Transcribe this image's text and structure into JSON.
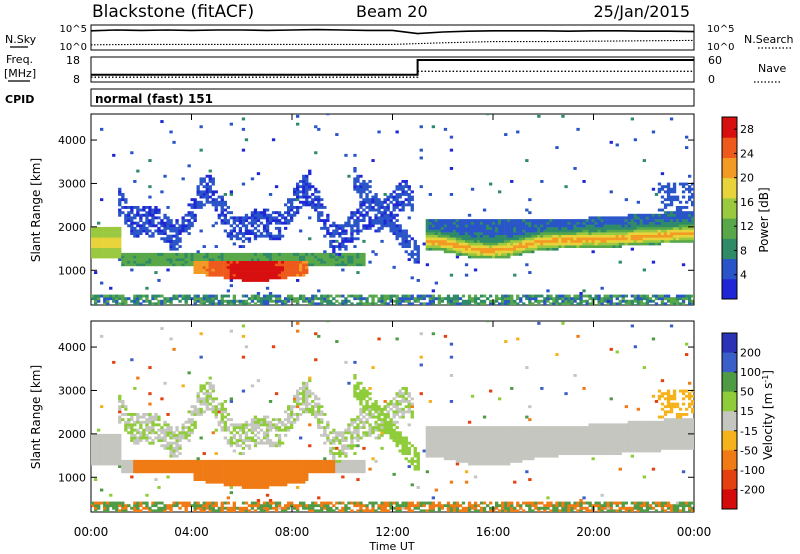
{
  "header": {
    "station": "Blackstone (fitACF)",
    "beam": "Beam 20",
    "date": "25/Jan/2015"
  },
  "noise_panel": {
    "left_label": "N.Sky",
    "right_label": "N.Search",
    "tick_top": "10^5",
    "tick_bottom": "10^0",
    "series": [
      {
        "name": "N.Sky",
        "x": [
          0,
          1,
          2,
          3,
          4,
          5,
          6,
          7,
          8,
          9,
          10,
          11,
          12,
          13,
          14,
          15,
          16,
          17,
          18,
          19,
          20,
          21,
          22,
          23,
          24
        ],
        "y": [
          4.3,
          4.5,
          4.4,
          4.5,
          4.4,
          4.5,
          4.5,
          4.4,
          4.5,
          4.6,
          4.5,
          4.4,
          4.4,
          3.6,
          4.0,
          4.2,
          4.3,
          4.3,
          4.3,
          4.2,
          4.3,
          4.3,
          4.2,
          4.2,
          4.1
        ]
      },
      {
        "name": "N.Search",
        "x": [
          0,
          2,
          4,
          6,
          8,
          10,
          12,
          13,
          14,
          16,
          18,
          20,
          22,
          24
        ],
        "y": [
          0.8,
          0.9,
          0.9,
          0.9,
          0.9,
          0.9,
          0.9,
          1.1,
          1.3,
          1.6,
          1.6,
          1.7,
          1.8,
          1.9
        ]
      }
    ]
  },
  "freq_panel": {
    "left_label_1": "Freq.",
    "left_label_2": "[MHz]",
    "right_label": "Nave",
    "tick_left_top": "18",
    "tick_left_bottom": "8",
    "tick_right_top": "60",
    "tick_right_bottom": "0",
    "freq_MHz": [
      {
        "t": 0,
        "v": 10.5
      },
      {
        "t": 13.0,
        "v": 10.5
      },
      {
        "t": 13.0,
        "v": 17.5
      },
      {
        "t": 24,
        "v": 17.5
      }
    ],
    "nave": [
      {
        "t": 0,
        "v": 8
      },
      {
        "t": 13.0,
        "v": 8
      },
      {
        "t": 13.0,
        "v": 25
      },
      {
        "t": 24,
        "v": 25
      }
    ]
  },
  "cpid": {
    "label": "CPID",
    "value": "normal (fast) 151"
  },
  "chart_data": [
    {
      "type": "heatmap",
      "title": "Power",
      "xlabel": "",
      "ylabel": "Slant Range [km]",
      "xlim": [
        0,
        24
      ],
      "ylim": [
        200,
        4600
      ],
      "yticks": [
        "1000",
        "2000",
        "3000",
        "4000"
      ],
      "colorbar": {
        "label": "Power [dB]",
        "ticks": [
          "4",
          "8",
          "12",
          "16",
          "20",
          "24",
          "28"
        ],
        "range": [
          0,
          30
        ]
      },
      "echo_bands": [
        {
          "t": [
            0,
            1.0
          ],
          "range_km": [
            1300,
            1900
          ],
          "value_dB": 16
        },
        {
          "t": [
            1.2,
            10.8
          ],
          "range_km": [
            1100,
            1350
          ],
          "value_dB": 10
        },
        {
          "t": [
            4.0,
            8.5
          ],
          "range_km": [
            750,
            1200
          ],
          "value_dB": 27
        },
        {
          "t": [
            1.0,
            12.8
          ],
          "range_km": [
            1800,
            2900
          ],
          "value_dB": 3
        },
        {
          "t": [
            13.2,
            24
          ],
          "range_km": [
            1300,
            2300
          ],
          "value_dB": 18
        }
      ]
    },
    {
      "type": "heatmap",
      "title": "Velocity",
      "xlabel": "Time UT",
      "ylabel": "Slant Range [km]",
      "xlim": [
        0,
        24
      ],
      "ylim": [
        200,
        4600
      ],
      "xticks": [
        "00:00",
        "04:00",
        "08:00",
        "12:00",
        "16:00",
        "20:00",
        "00:00"
      ],
      "yticks": [
        "1000",
        "2000",
        "3000",
        "4000"
      ],
      "colorbar": {
        "label": "Velocity [m s^-1]",
        "ticks": [
          "200",
          "100",
          "50",
          "15",
          "-15",
          "-50",
          "-100",
          "-200"
        ]
      },
      "echo_bands": [
        {
          "t": [
            0,
            1.0
          ],
          "range_km": [
            1300,
            1900
          ],
          "value_ms": 0
        },
        {
          "t": [
            1.5,
            9.5
          ],
          "range_km": [
            900,
            1350
          ],
          "value_ms": -75
        },
        {
          "t": [
            4.0,
            8.5
          ],
          "range_km": [
            750,
            1200
          ],
          "value_ms": -60
        },
        {
          "t": [
            1.0,
            12.8
          ],
          "range_km": [
            1800,
            2900
          ],
          "value_ms": 5
        },
        {
          "t": [
            13.2,
            24
          ],
          "range_km": [
            1300,
            2300
          ],
          "value_ms": 0
        }
      ]
    }
  ],
  "colors": {
    "power_scale": [
      "#1f26d6",
      "#2a55c8",
      "#2f8a68",
      "#58a84a",
      "#9ac940",
      "#e8d43a",
      "#f39a25",
      "#ee5a1c",
      "#d80f0f"
    ],
    "velocity_scale": [
      "#2a33b5",
      "#3a5fc8",
      "#4f9b45",
      "#8fcc3a",
      "#c6c6c0",
      "#f6b21c",
      "#f07a14",
      "#e44010",
      "#d50b0b"
    ]
  }
}
